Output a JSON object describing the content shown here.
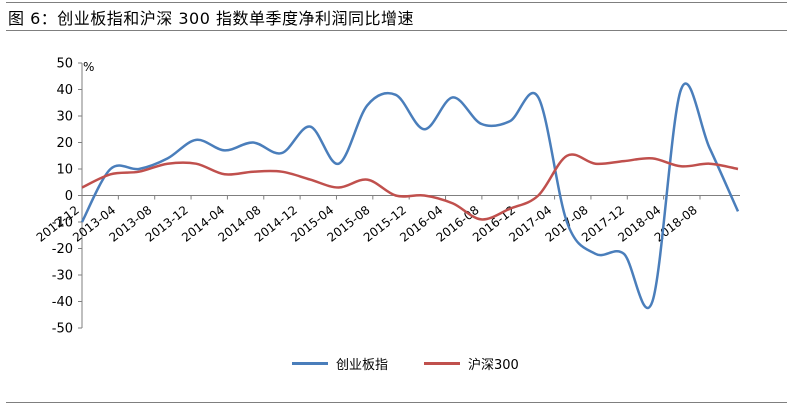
{
  "title": "图 6：创业板指和沪深 300 指数单季度净利润同比增速",
  "chart_data": {
    "type": "line",
    "unit": "%",
    "ylim": [
      -50,
      50
    ],
    "yticks": [
      50,
      40,
      30,
      20,
      10,
      0,
      -10,
      -20,
      -30,
      -40,
      -50
    ],
    "xticklabels": [
      "2012-12",
      "2013-04",
      "2013-08",
      "2013-12",
      "2014-04",
      "2014-08",
      "2014-12",
      "2015-04",
      "2015-08",
      "2015-12",
      "2016-04",
      "2016-08",
      "2016-12",
      "2017-04",
      "2017-08",
      "2017-12",
      "2018-04",
      "2018-08"
    ],
    "x": [
      "2012-12",
      "2013-03",
      "2013-06",
      "2013-09",
      "2013-12",
      "2014-03",
      "2014-06",
      "2014-09",
      "2014-12",
      "2015-03",
      "2015-06",
      "2015-09",
      "2015-12",
      "2016-03",
      "2016-06",
      "2016-09",
      "2016-12",
      "2017-03",
      "2017-06",
      "2017-09",
      "2017-12",
      "2018-03",
      "2018-06",
      "2018-09"
    ],
    "series": [
      {
        "name": "创业板指",
        "color": "#4a7ebb",
        "values": [
          -10,
          10,
          10,
          14,
          21,
          17,
          20,
          16,
          26,
          12,
          34,
          38,
          25,
          37,
          27,
          28,
          37,
          -10,
          -22,
          -22,
          -40,
          40,
          18,
          -6
        ]
      },
      {
        "name": "沪深300",
        "color": "#c0504d",
        "values": [
          3,
          8,
          9,
          12,
          12,
          8,
          9,
          9,
          6,
          3,
          6,
          0,
          0,
          -3,
          -9,
          -5,
          0,
          15,
          12,
          13,
          14,
          11,
          12,
          10
        ]
      }
    ],
    "grid": false,
    "legend": "bottom-center"
  }
}
